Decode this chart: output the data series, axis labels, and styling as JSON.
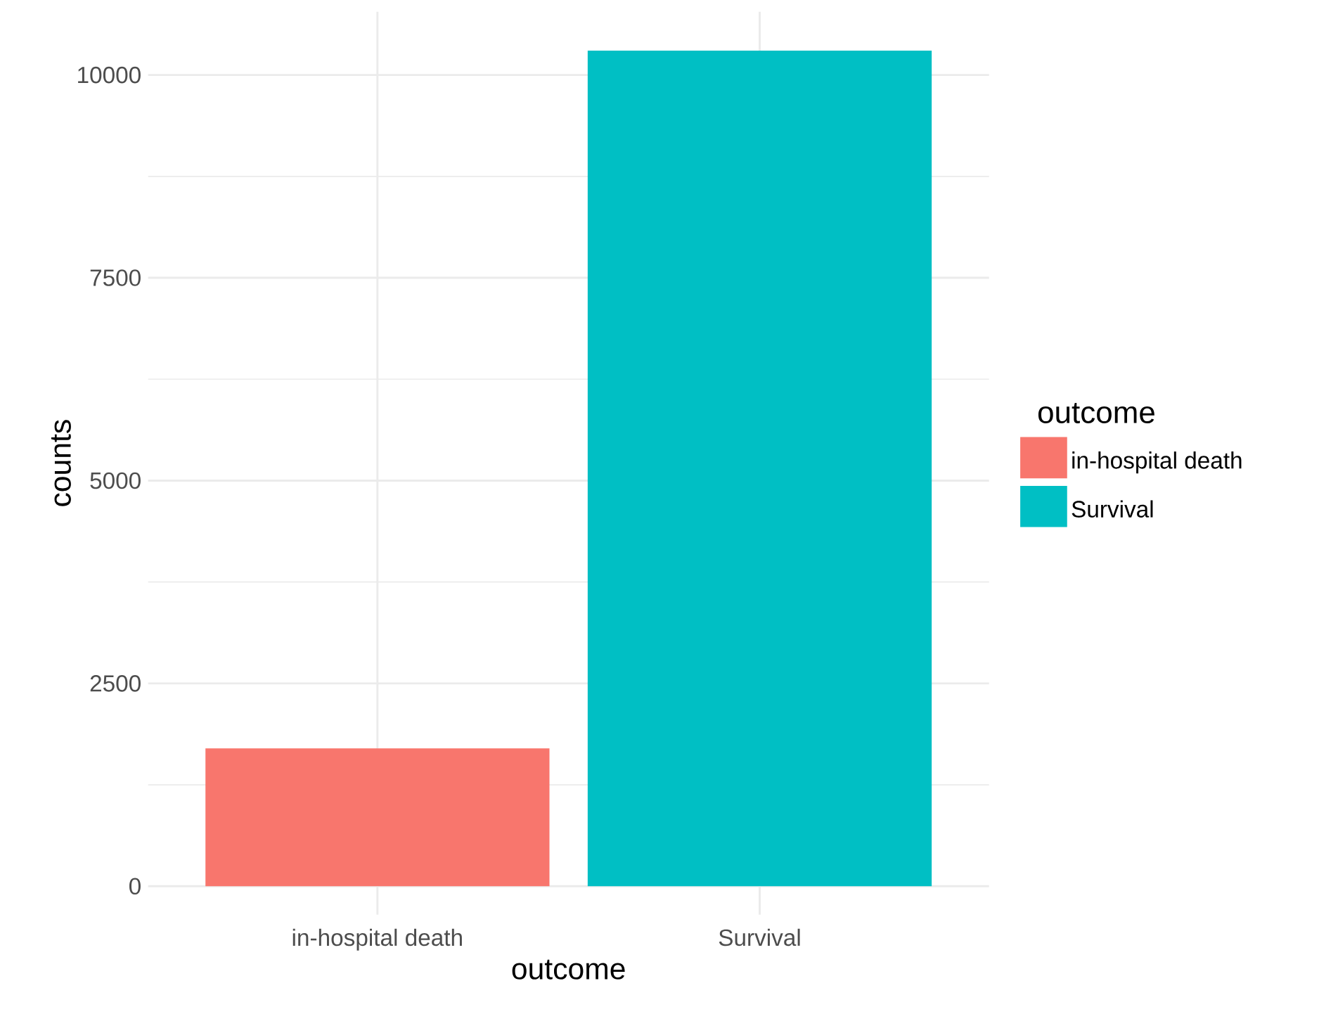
{
  "chart_data": {
    "type": "bar",
    "xlabel": "outcome",
    "ylabel": "counts",
    "legend_title": "outcome",
    "categories": [
      "in-hospital death",
      "Survival"
    ],
    "series": [
      {
        "name": "in-hospital death",
        "color": "#f8766d",
        "values": [
          1700,
          null
        ]
      },
      {
        "name": "Survival",
        "color": "#00bfc4",
        "values": [
          null,
          10300
        ]
      }
    ],
    "ylim": [
      -350,
      10780
    ],
    "yticks": [
      0,
      2500,
      5000,
      7500,
      10000
    ],
    "grid": true,
    "legend": "right"
  }
}
